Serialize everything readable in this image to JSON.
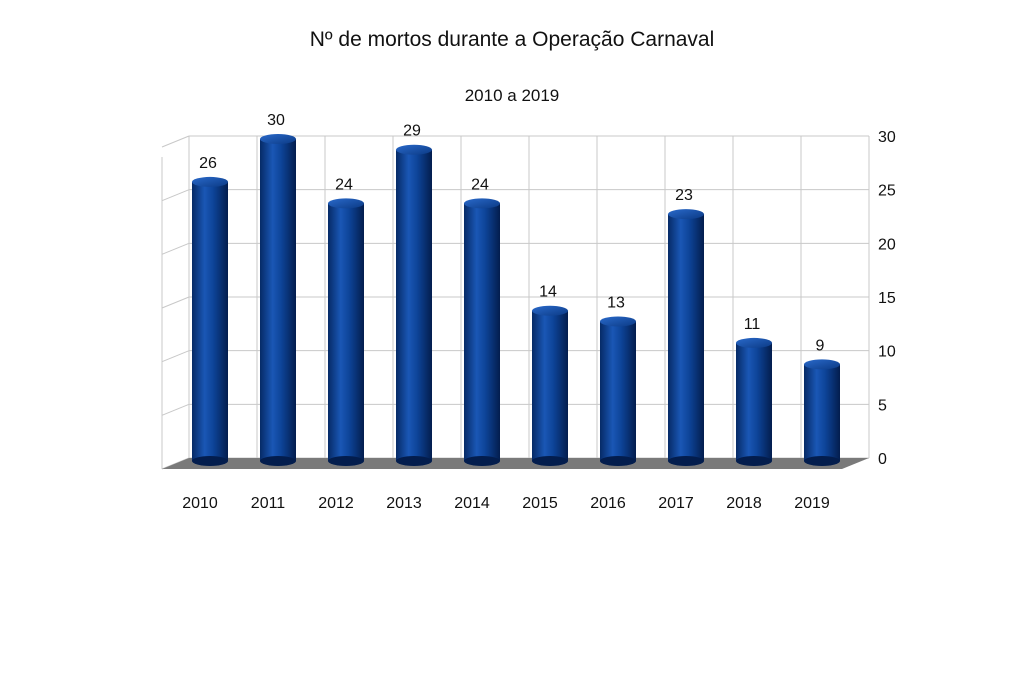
{
  "chart_data": {
    "type": "bar",
    "title": "Nº de mortos durante a Operação Carnaval",
    "subtitle": "2010 a 2019",
    "categories": [
      "2010",
      "2011",
      "2012",
      "2013",
      "2014",
      "2015",
      "2016",
      "2017",
      "2018",
      "2019"
    ],
    "values": [
      26,
      30,
      24,
      29,
      24,
      14,
      13,
      23,
      11,
      9
    ],
    "data_labels": [
      "26",
      "30",
      "24",
      "29",
      "24",
      "14",
      "13",
      "23",
      "11",
      "9"
    ],
    "xlabel": "",
    "ylabel": "",
    "ylim": [
      0,
      30
    ],
    "yticks": [
      "0",
      "5",
      "10",
      "15",
      "20",
      "25",
      "30"
    ],
    "y_axis_side": "right",
    "grid": true,
    "legend": "none",
    "style": "3d-cylinder",
    "bar_color": "#0a3d8c",
    "floor_color": "#7a7a7a"
  }
}
